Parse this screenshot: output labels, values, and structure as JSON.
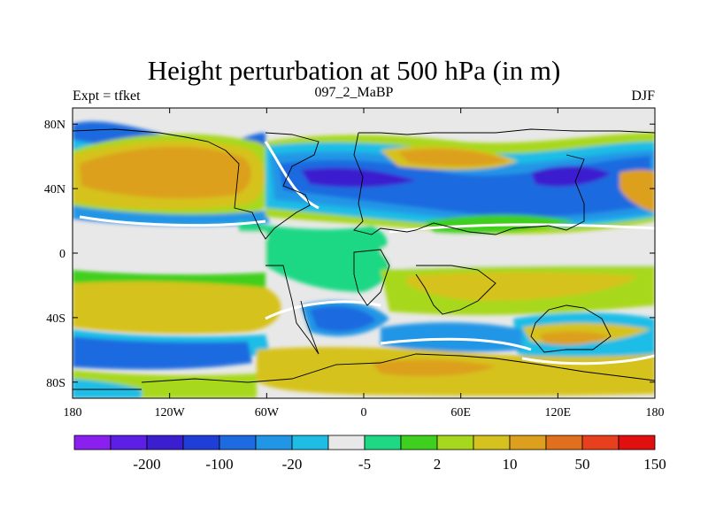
{
  "title": "Height perturbation at 500 hPa (in m)",
  "left_string": "Expt = tfket",
  "center_string": "097_2_MaBP",
  "right_string": "DJF",
  "map": {
    "longitude_range": [
      -180,
      180
    ],
    "latitude_range": [
      -90,
      90
    ],
    "x_ticks": [
      {
        "value": -180,
        "label": "180"
      },
      {
        "value": -120,
        "label": "120W"
      },
      {
        "value": -60,
        "label": "60W"
      },
      {
        "value": 0,
        "label": "0"
      },
      {
        "value": 60,
        "label": "60E"
      },
      {
        "value": 120,
        "label": "120E"
      },
      {
        "value": 180,
        "label": "180"
      }
    ],
    "y_ticks": [
      {
        "value": 80,
        "label": "80N"
      },
      {
        "value": 40,
        "label": "40N"
      },
      {
        "value": 0,
        "label": "0"
      },
      {
        "value": -40,
        "label": "40S"
      },
      {
        "value": -80,
        "label": "80S"
      }
    ]
  },
  "colorbar": {
    "colors": [
      "#8a1ff0",
      "#5b1fe6",
      "#3a1ecf",
      "#1f3ed8",
      "#1e6ae0",
      "#2296e6",
      "#1ebde6",
      "#e8e8e8",
      "#1ed884",
      "#3fcf1e",
      "#a8d81e",
      "#d6c21e",
      "#dca01e",
      "#e0701e",
      "#e8401e",
      "#e01010"
    ],
    "labels": [
      {
        "after_index": 1,
        "text": "-200"
      },
      {
        "after_index": 3,
        "text": "-100"
      },
      {
        "after_index": 5,
        "text": "-20"
      },
      {
        "after_index": 7,
        "text": "-5"
      },
      {
        "after_index": 9,
        "text": "2"
      },
      {
        "after_index": 11,
        "text": "10"
      },
      {
        "after_index": 13,
        "text": "50"
      },
      {
        "after_index": 15,
        "text": "150"
      }
    ]
  },
  "field_colors": {
    "background": "#e8e8e8",
    "blue_deep": "#3a1ecf",
    "blue": "#1e6ae0",
    "blue_mid": "#2296e6",
    "cyan": "#1ebde6",
    "teal": "#1ed884",
    "green": "#3fcf1e",
    "lime": "#a8d81e",
    "yellow": "#d6c21e",
    "orange": "#dca01e",
    "dark_orange": "#e0701e"
  }
}
